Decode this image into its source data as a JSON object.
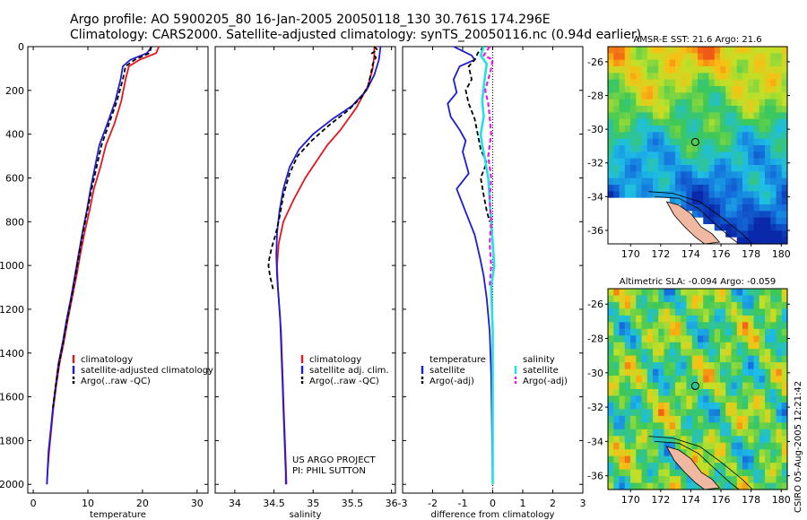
{
  "header": {
    "line1": "Argo profile: AO 5900205_80 16-Jan-2005 20050118_130 30.761S 174.296E",
    "line2": "Climatology: CARS2000. Satellite-adjusted climatology: synTS_20050116.nc (0.94d earlier)"
  },
  "colors": {
    "climatology": "#e8141c",
    "satellite": "#1c1cd4",
    "argo": "#000000",
    "salinity": "#20e0e8",
    "argo_sal": "#e020e0"
  },
  "chart_data": [
    {
      "id": "temperature",
      "type": "line",
      "xlabel": "temperature",
      "ylabel": "",
      "xlim": [
        -1,
        32
      ],
      "ylim": [
        2040,
        0
      ],
      "reverse_y": true,
      "xticks": [
        0,
        10,
        20,
        30
      ],
      "yticks": [
        0,
        200,
        400,
        600,
        800,
        1000,
        1200,
        1400,
        1600,
        1800,
        2000
      ],
      "legend": [
        "climatology",
        "satellite-adjusted climatology",
        "Argo(..raw -QC)"
      ],
      "series": [
        {
          "name": "climatology",
          "color": "#e8141c",
          "width": 1.8,
          "dash": "",
          "points": [
            [
              23.0,
              0
            ],
            [
              22.5,
              30
            ],
            [
              19.5,
              60
            ],
            [
              17.5,
              90
            ],
            [
              16.9,
              150
            ],
            [
              16.1,
              250
            ],
            [
              14.9,
              350
            ],
            [
              13.3,
              450
            ],
            [
              12.3,
              550
            ],
            [
              11.1,
              650
            ],
            [
              10.3,
              750
            ],
            [
              9.4,
              850
            ],
            [
              8.6,
              950
            ],
            [
              7.9,
              1050
            ],
            [
              7.1,
              1150
            ],
            [
              6.3,
              1250
            ],
            [
              5.6,
              1350
            ],
            [
              4.8,
              1450
            ],
            [
              4.2,
              1550
            ],
            [
              3.7,
              1650
            ],
            [
              3.3,
              1750
            ],
            [
              2.9,
              1850
            ],
            [
              2.6,
              1950
            ],
            [
              2.5,
              2000
            ]
          ]
        },
        {
          "name": "satellite-adjusted climatology",
          "color": "#1c1cd4",
          "width": 1.8,
          "dash": "",
          "points": [
            [
              21.7,
              0
            ],
            [
              20.8,
              30
            ],
            [
              17.8,
              60
            ],
            [
              16.4,
              90
            ],
            [
              16.0,
              150
            ],
            [
              15.0,
              250
            ],
            [
              13.6,
              350
            ],
            [
              12.1,
              450
            ],
            [
              11.3,
              550
            ],
            [
              10.5,
              650
            ],
            [
              9.8,
              750
            ],
            [
              9.0,
              850
            ],
            [
              8.3,
              950
            ],
            [
              7.6,
              1050
            ],
            [
              6.9,
              1150
            ],
            [
              6.1,
              1250
            ],
            [
              5.4,
              1350
            ],
            [
              4.6,
              1450
            ],
            [
              4.1,
              1550
            ],
            [
              3.6,
              1650
            ],
            [
              3.2,
              1750
            ],
            [
              2.8,
              1850
            ],
            [
              2.6,
              1950
            ],
            [
              2.5,
              2000
            ]
          ]
        },
        {
          "name": "Argo(..raw -QC)",
          "color": "#000000",
          "width": 1.8,
          "dash": "5,3",
          "points": [
            [
              21.6,
              0
            ],
            [
              21.3,
              30
            ],
            [
              18.6,
              60
            ],
            [
              16.9,
              90
            ],
            [
              16.4,
              150
            ],
            [
              15.3,
              250
            ],
            [
              13.9,
              350
            ],
            [
              12.5,
              450
            ],
            [
              11.6,
              550
            ],
            [
              10.7,
              650
            ],
            [
              9.9,
              750
            ],
            [
              9.1,
              850
            ],
            [
              8.4,
              950
            ],
            [
              7.7,
              1050
            ],
            [
              7.0,
              1150
            ],
            [
              6.2,
              1250
            ],
            [
              5.5,
              1350
            ],
            [
              4.7,
              1450
            ],
            [
              4.1,
              1550
            ],
            [
              3.6,
              1650
            ]
          ]
        }
      ]
    },
    {
      "id": "salinity",
      "type": "line",
      "xlabel": "salinity",
      "ylabel": "",
      "xlim": [
        33.75,
        36.05
      ],
      "ylim": [
        2040,
        0
      ],
      "reverse_y": true,
      "xticks": [
        34,
        34.5,
        35,
        35.5,
        36
      ],
      "yticks": [
        0,
        200,
        400,
        600,
        800,
        1000,
        1200,
        1400,
        1600,
        1800,
        2000
      ],
      "legend": [
        "climatology",
        "satellite adj. clim.",
        "Argo(..raw -QC)"
      ],
      "project": [
        "US ARGO PROJECT",
        "PI: PHIL SUTTON"
      ],
      "series": [
        {
          "name": "climatology",
          "color": "#e8141c",
          "width": 1.8,
          "dash": "",
          "points": [
            [
              35.78,
              0
            ],
            [
              35.78,
              40
            ],
            [
              35.76,
              100
            ],
            [
              35.7,
              180
            ],
            [
              35.55,
              280
            ],
            [
              35.35,
              380
            ],
            [
              35.18,
              450
            ],
            [
              35.05,
              520
            ],
            [
              34.9,
              600
            ],
            [
              34.75,
              700
            ],
            [
              34.62,
              800
            ],
            [
              34.56,
              900
            ],
            [
              34.54,
              1000
            ],
            [
              34.55,
              1100
            ],
            [
              34.57,
              1200
            ],
            [
              34.59,
              1300
            ],
            [
              34.6,
              1400
            ],
            [
              34.61,
              1500
            ],
            [
              34.62,
              1600
            ],
            [
              34.63,
              1700
            ],
            [
              34.64,
              1800
            ],
            [
              34.65,
              1900
            ],
            [
              34.66,
              2000
            ]
          ]
        },
        {
          "name": "satellite adj. clim.",
          "color": "#1c1cd4",
          "width": 1.8,
          "dash": "",
          "points": [
            [
              35.86,
              0
            ],
            [
              35.84,
              60
            ],
            [
              35.78,
              130
            ],
            [
              35.68,
              200
            ],
            [
              35.5,
              270
            ],
            [
              35.25,
              330
            ],
            [
              35.0,
              400
            ],
            [
              34.82,
              470
            ],
            [
              34.7,
              550
            ],
            [
              34.62,
              650
            ],
            [
              34.57,
              750
            ],
            [
              34.54,
              850
            ],
            [
              34.53,
              950
            ],
            [
              34.54,
              1050
            ],
            [
              34.56,
              1150
            ],
            [
              34.58,
              1250
            ],
            [
              34.59,
              1350
            ],
            [
              34.6,
              1450
            ],
            [
              34.61,
              1550
            ],
            [
              34.62,
              1650
            ],
            [
              34.63,
              1750
            ],
            [
              34.64,
              1850
            ],
            [
              34.65,
              1950
            ],
            [
              34.65,
              2000
            ]
          ]
        },
        {
          "name": "Argo(..raw -QC)",
          "color": "#000000",
          "width": 1.8,
          "dash": "5,3",
          "points": [
            [
              35.78,
              0
            ],
            [
              35.82,
              15
            ],
            [
              35.75,
              30
            ],
            [
              35.8,
              50
            ],
            [
              35.76,
              80
            ],
            [
              35.74,
              120
            ],
            [
              35.7,
              180
            ],
            [
              35.62,
              230
            ],
            [
              35.45,
              290
            ],
            [
              35.2,
              360
            ],
            [
              34.98,
              430
            ],
            [
              34.8,
              500
            ],
            [
              34.7,
              580
            ],
            [
              34.62,
              680
            ],
            [
              34.57,
              780
            ],
            [
              34.52,
              860
            ],
            [
              34.47,
              920
            ],
            [
              34.44,
              970
            ],
            [
              34.43,
              1000
            ],
            [
              34.45,
              1050
            ],
            [
              34.49,
              1110
            ]
          ]
        }
      ]
    },
    {
      "id": "difference",
      "type": "line",
      "xlabel": "difference from climatology",
      "ylabel": "",
      "xlim": [
        -3.0,
        3.0
      ],
      "ylim": [
        2040,
        0
      ],
      "reverse_y": true,
      "xticks": [
        -3,
        -2,
        -1,
        0,
        1,
        2,
        3
      ],
      "yticks": [
        0,
        200,
        400,
        600,
        800,
        1000,
        1200,
        1400,
        1600,
        1800,
        2000
      ],
      "legend_left_title": "temperature",
      "legend_right_title": "salinity",
      "legend_left": [
        "satellite",
        "Argo(-adj)"
      ],
      "legend_right": [
        "satellite",
        "Argo(-adj)"
      ],
      "series": [
        {
          "name": "temperature satellite",
          "color": "#1c1cd4",
          "width": 1.8,
          "dash": "",
          "points": [
            [
              -1.3,
              0
            ],
            [
              -1.0,
              20
            ],
            [
              -0.7,
              40
            ],
            [
              -0.6,
              60
            ],
            [
              -1.1,
              90
            ],
            [
              -1.3,
              150
            ],
            [
              -1.2,
              210
            ],
            [
              -1.5,
              260
            ],
            [
              -1.4,
              320
            ],
            [
              -1.1,
              380
            ],
            [
              -0.9,
              430
            ],
            [
              -1.0,
              480
            ],
            [
              -0.9,
              530
            ],
            [
              -0.8,
              580
            ],
            [
              -1.2,
              650
            ],
            [
              -1.0,
              720
            ],
            [
              -0.8,
              790
            ],
            [
              -0.6,
              860
            ],
            [
              -0.5,
              920
            ],
            [
              -0.4,
              980
            ],
            [
              -0.3,
              1050
            ],
            [
              -0.2,
              1150
            ],
            [
              -0.1,
              1300
            ],
            [
              -0.05,
              1500
            ],
            [
              0.0,
              2000
            ]
          ]
        },
        {
          "name": "temperature Argo(-adj)",
          "color": "#000000",
          "width": 1.8,
          "dash": "5,3",
          "points": [
            [
              -0.3,
              0
            ],
            [
              -0.5,
              30
            ],
            [
              -0.6,
              60
            ],
            [
              -0.8,
              90
            ],
            [
              -0.7,
              150
            ],
            [
              -0.9,
              200
            ],
            [
              -0.8,
              260
            ],
            [
              -0.6,
              330
            ],
            [
              -0.5,
              400
            ],
            [
              -0.4,
              470
            ],
            [
              -0.2,
              530
            ],
            [
              -0.4,
              600
            ],
            [
              -0.3,
              680
            ],
            [
              -0.2,
              750
            ],
            [
              -0.1,
              800
            ]
          ]
        },
        {
          "name": "salinity satellite",
          "color": "#20e0e8",
          "width": 2.6,
          "dash": "",
          "points": [
            [
              -0.3,
              0
            ],
            [
              -0.4,
              40
            ],
            [
              -0.2,
              80
            ],
            [
              -0.25,
              130
            ],
            [
              -0.3,
              180
            ],
            [
              -0.35,
              250
            ],
            [
              -0.3,
              320
            ],
            [
              -0.4,
              400
            ],
            [
              -0.35,
              450
            ],
            [
              -0.25,
              520
            ],
            [
              -0.15,
              600
            ],
            [
              -0.1,
              700
            ],
            [
              -0.05,
              800
            ],
            [
              0.0,
              900
            ],
            [
              0.05,
              1000
            ],
            [
              -0.05,
              1100
            ],
            [
              0.0,
              1300
            ],
            [
              0.0,
              1500
            ],
            [
              0.0,
              2000
            ]
          ]
        },
        {
          "name": "salinity Argo(-adj)",
          "color": "#e020e0",
          "width": 2.2,
          "dash": "5,3",
          "points": [
            [
              -0.1,
              0
            ],
            [
              -0.2,
              20
            ],
            [
              -0.3,
              40
            ],
            [
              0.0,
              60
            ],
            [
              -0.05,
              100
            ],
            [
              -0.15,
              150
            ],
            [
              -0.25,
              200
            ],
            [
              -0.15,
              260
            ],
            [
              -0.1,
              320
            ],
            [
              -0.05,
              400
            ],
            [
              -0.15,
              500
            ],
            [
              -0.05,
              600
            ],
            [
              -0.1,
              700
            ],
            [
              -0.05,
              800
            ],
            [
              -0.1,
              900
            ],
            [
              -0.05,
              1000
            ],
            [
              -0.1,
              1100
            ]
          ]
        }
      ]
    },
    {
      "id": "sst_map",
      "type": "heatmap",
      "title": "AMSR-E SST: 21.6 Argo: 21.6",
      "xlim": [
        168.5,
        180.4
      ],
      "ylim": [
        -36.8,
        -25.1
      ],
      "xticks": [
        170,
        172,
        174,
        176,
        178,
        180
      ],
      "yticks": [
        -26,
        -28,
        -30,
        -32,
        -34,
        -36
      ],
      "marker": [
        174.296,
        -30.761
      ]
    },
    {
      "id": "sla_map",
      "type": "heatmap",
      "title": "Altimetric SLA: -0.094 Argo: -0.059",
      "xlim": [
        168.5,
        180.4
      ],
      "ylim": [
        -36.8,
        -25.1
      ],
      "xticks": [
        170,
        172,
        174,
        176,
        178,
        180
      ],
      "yticks": [
        -26,
        -28,
        -30,
        -32,
        -34,
        -36
      ],
      "marker": [
        174.296,
        -30.761
      ]
    }
  ],
  "footer": {
    "credit": "CSIRO 05-Aug-2005 12:21:42"
  }
}
